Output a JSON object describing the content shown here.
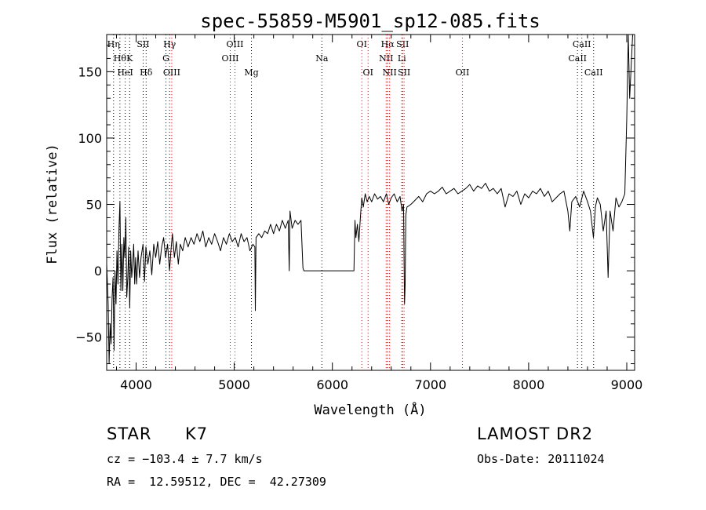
{
  "chart_data": {
    "type": "line",
    "title": "spec-55859-M5901_sp12-085.fits",
    "xlabel": "Wavelength (Å)",
    "ylabel": "Flux (relative)",
    "xlim": [
      3700,
      9080
    ],
    "ylim": [
      -75,
      178
    ],
    "xticks": [
      4000,
      5000,
      6000,
      7000,
      8000,
      9000
    ],
    "yticks": [
      -50,
      0,
      50,
      100,
      150
    ],
    "grid": false,
    "series": [
      {
        "line_color": "#000000",
        "points": [
          [
            3700,
            5
          ],
          [
            3715,
            -25
          ],
          [
            3725,
            -70
          ],
          [
            3735,
            -40
          ],
          [
            3745,
            -55
          ],
          [
            3755,
            -20
          ],
          [
            3765,
            -5
          ],
          [
            3775,
            -60
          ],
          [
            3785,
            0
          ],
          [
            3795,
            -25
          ],
          [
            3805,
            15
          ],
          [
            3815,
            -10
          ],
          [
            3825,
            30
          ],
          [
            3835,
            52
          ],
          [
            3845,
            -15
          ],
          [
            3855,
            20
          ],
          [
            3865,
            -15
          ],
          [
            3875,
            25
          ],
          [
            3885,
            10
          ],
          [
            3895,
            40
          ],
          [
            3905,
            -20
          ],
          [
            3915,
            -5
          ],
          [
            3925,
            18
          ],
          [
            3935,
            -28
          ],
          [
            3945,
            15
          ],
          [
            3955,
            -5
          ],
          [
            3965,
            5
          ],
          [
            3975,
            20
          ],
          [
            3985,
            -10
          ],
          [
            3995,
            10
          ],
          [
            4005,
            -10
          ],
          [
            4020,
            15
          ],
          [
            4035,
            -5
          ],
          [
            4050,
            10
          ],
          [
            4070,
            20
          ],
          [
            4085,
            -8
          ],
          [
            4100,
            18
          ],
          [
            4120,
            5
          ],
          [
            4140,
            15
          ],
          [
            4160,
            -3
          ],
          [
            4180,
            20
          ],
          [
            4200,
            10
          ],
          [
            4220,
            22
          ],
          [
            4240,
            5
          ],
          [
            4260,
            18
          ],
          [
            4280,
            25
          ],
          [
            4300,
            10
          ],
          [
            4320,
            20
          ],
          [
            4340,
            0
          ],
          [
            4355,
            15
          ],
          [
            4370,
            28
          ],
          [
            4390,
            10
          ],
          [
            4410,
            22
          ],
          [
            4430,
            5
          ],
          [
            4450,
            20
          ],
          [
            4475,
            15
          ],
          [
            4500,
            25
          ],
          [
            4530,
            18
          ],
          [
            4560,
            25
          ],
          [
            4590,
            20
          ],
          [
            4620,
            28
          ],
          [
            4650,
            22
          ],
          [
            4680,
            30
          ],
          [
            4710,
            18
          ],
          [
            4740,
            25
          ],
          [
            4770,
            20
          ],
          [
            4800,
            28
          ],
          [
            4830,
            22
          ],
          [
            4860,
            15
          ],
          [
            4890,
            25
          ],
          [
            4920,
            20
          ],
          [
            4950,
            28
          ],
          [
            4980,
            22
          ],
          [
            5010,
            25
          ],
          [
            5040,
            18
          ],
          [
            5070,
            28
          ],
          [
            5100,
            22
          ],
          [
            5130,
            25
          ],
          [
            5160,
            15
          ],
          [
            5190,
            20
          ],
          [
            5210,
            18
          ],
          [
            5215,
            -30
          ],
          [
            5222,
            25
          ],
          [
            5250,
            28
          ],
          [
            5280,
            25
          ],
          [
            5310,
            30
          ],
          [
            5340,
            28
          ],
          [
            5370,
            35
          ],
          [
            5400,
            28
          ],
          [
            5430,
            35
          ],
          [
            5460,
            30
          ],
          [
            5490,
            38
          ],
          [
            5520,
            32
          ],
          [
            5550,
            38
          ],
          [
            5560,
            0
          ],
          [
            5568,
            45
          ],
          [
            5590,
            32
          ],
          [
            5620,
            38
          ],
          [
            5650,
            35
          ],
          [
            5680,
            38
          ],
          [
            5700,
            2
          ],
          [
            5710,
            0
          ],
          [
            6220,
            0
          ],
          [
            6230,
            38
          ],
          [
            6240,
            25
          ],
          [
            6255,
            35
          ],
          [
            6270,
            22
          ],
          [
            6285,
            40
          ],
          [
            6300,
            55
          ],
          [
            6315,
            48
          ],
          [
            6335,
            58
          ],
          [
            6355,
            52
          ],
          [
            6375,
            56
          ],
          [
            6400,
            52
          ],
          [
            6430,
            58
          ],
          [
            6460,
            54
          ],
          [
            6490,
            56
          ],
          [
            6520,
            52
          ],
          [
            6550,
            58
          ],
          [
            6575,
            50
          ],
          [
            6600,
            55
          ],
          [
            6630,
            58
          ],
          [
            6660,
            52
          ],
          [
            6690,
            56
          ],
          [
            6710,
            45
          ],
          [
            6725,
            50
          ],
          [
            6735,
            -25
          ],
          [
            6742,
            -10
          ],
          [
            6748,
            42
          ],
          [
            6760,
            48
          ],
          [
            6800,
            50
          ],
          [
            6840,
            53
          ],
          [
            6880,
            56
          ],
          [
            6920,
            52
          ],
          [
            6960,
            58
          ],
          [
            7000,
            60
          ],
          [
            7040,
            58
          ],
          [
            7080,
            60
          ],
          [
            7120,
            63
          ],
          [
            7160,
            58
          ],
          [
            7200,
            60
          ],
          [
            7240,
            62
          ],
          [
            7280,
            58
          ],
          [
            7320,
            60
          ],
          [
            7360,
            62
          ],
          [
            7400,
            65
          ],
          [
            7440,
            60
          ],
          [
            7480,
            64
          ],
          [
            7520,
            62
          ],
          [
            7560,
            66
          ],
          [
            7600,
            60
          ],
          [
            7640,
            62
          ],
          [
            7680,
            58
          ],
          [
            7720,
            62
          ],
          [
            7760,
            48
          ],
          [
            7800,
            58
          ],
          [
            7840,
            56
          ],
          [
            7880,
            60
          ],
          [
            7920,
            50
          ],
          [
            7960,
            58
          ],
          [
            8000,
            55
          ],
          [
            8040,
            60
          ],
          [
            8080,
            58
          ],
          [
            8120,
            62
          ],
          [
            8160,
            56
          ],
          [
            8200,
            60
          ],
          [
            8240,
            52
          ],
          [
            8280,
            55
          ],
          [
            8320,
            58
          ],
          [
            8360,
            60
          ],
          [
            8400,
            45
          ],
          [
            8420,
            30
          ],
          [
            8440,
            52
          ],
          [
            8480,
            56
          ],
          [
            8520,
            48
          ],
          [
            8560,
            60
          ],
          [
            8600,
            52
          ],
          [
            8630,
            45
          ],
          [
            8660,
            25
          ],
          [
            8680,
            48
          ],
          [
            8700,
            55
          ],
          [
            8730,
            50
          ],
          [
            8760,
            30
          ],
          [
            8790,
            45
          ],
          [
            8810,
            -5
          ],
          [
            8830,
            45
          ],
          [
            8860,
            30
          ],
          [
            8890,
            55
          ],
          [
            8920,
            48
          ],
          [
            8950,
            52
          ],
          [
            8980,
            58
          ],
          [
            9000,
            115
          ],
          [
            9015,
            180
          ],
          [
            9030,
            130
          ],
          [
            9060,
            178
          ]
        ]
      }
    ],
    "lines": [
      {
        "x": 3770,
        "row": 0,
        "label": "Hη",
        "style": "black"
      },
      {
        "x": 3835,
        "row": 1,
        "label": "Hθ",
        "style": "black"
      },
      {
        "x": 3889,
        "row": 2,
        "label": "HeI",
        "style": "black"
      },
      {
        "x": 3934,
        "row": 1,
        "label": "K",
        "style": "black"
      },
      {
        "x": 4072,
        "row": 0,
        "label": "SII",
        "style": "black"
      },
      {
        "x": 4102,
        "row": 2,
        "label": "Hδ",
        "style": "black"
      },
      {
        "x": 4304,
        "row": 1,
        "label": "G",
        "style": "black"
      },
      {
        "x": 4341,
        "row": 0,
        "label": "Hγ",
        "style": "black"
      },
      {
        "x": 4363,
        "row": 2,
        "label": "OIII",
        "style": "red"
      },
      {
        "x": 4959,
        "row": 1,
        "label": "OIII",
        "style": "red"
      },
      {
        "x": 5007,
        "row": 0,
        "label": "OIII",
        "style": "red"
      },
      {
        "x": 5175,
        "row": 2,
        "label": "Mg",
        "style": "black"
      },
      {
        "x": 5893,
        "row": 1,
        "label": "Na",
        "style": "black"
      },
      {
        "x": 6300,
        "row": 0,
        "label": "OI",
        "style": "red"
      },
      {
        "x": 6364,
        "row": 2,
        "label": "OI",
        "style": "red"
      },
      {
        "x": 6548,
        "row": 1,
        "label": "NII",
        "style": "red"
      },
      {
        "x": 6563,
        "row": 0,
        "label": "Hα",
        "style": "black"
      },
      {
        "x": 6583,
        "row": 2,
        "label": "NII",
        "style": "red"
      },
      {
        "x": 6708,
        "row": 1,
        "label": "Li",
        "style": "black"
      },
      {
        "x": 6716,
        "row": 0,
        "label": "SII",
        "style": "red"
      },
      {
        "x": 6731,
        "row": 2,
        "label": "SII",
        "style": "red"
      },
      {
        "x": 7325,
        "row": 2,
        "label": "OII",
        "style": "red"
      },
      {
        "x": 8498,
        "row": 1,
        "label": "CaII",
        "style": "black"
      },
      {
        "x": 8542,
        "row": 0,
        "label": "CaII",
        "style": "black"
      },
      {
        "x": 8662,
        "row": 2,
        "label": "CaII",
        "style": "black"
      }
    ]
  },
  "info": {
    "object_class": "STAR",
    "subclass": "K7",
    "survey": "LAMOST DR2",
    "redshift_line": "cz = −103.4 ± 7.7 km/s",
    "obs_date_line": "Obs-Date: 20111024",
    "coords_line": "RA =  12.59512, DEC =  42.27309"
  },
  "colors": {
    "axis": "#000000",
    "line_marker_black": "#000000",
    "line_marker_red": "#ff0000"
  }
}
